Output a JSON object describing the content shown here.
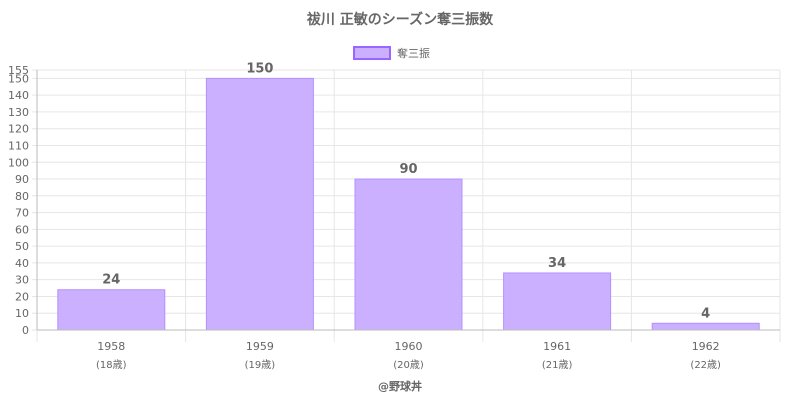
{
  "chart_data": {
    "type": "bar",
    "title": "祓川 正敏のシーズン奪三振数",
    "legend": {
      "position": "top",
      "entries": [
        "奪三振"
      ]
    },
    "categories": [
      "1958",
      "1959",
      "1960",
      "1961",
      "1962"
    ],
    "category_sublabels": [
      "(18歳)",
      "(19歳)",
      "(20歳)",
      "(21歳)",
      "(22歳)"
    ],
    "series": [
      {
        "name": "奪三振",
        "values": [
          24,
          150,
          90,
          34,
          4
        ]
      }
    ],
    "data_labels": [
      "24",
      "150",
      "90",
      "34",
      "4"
    ],
    "ylim": [
      0,
      155
    ],
    "yticks": [
      0,
      10,
      20,
      30,
      40,
      50,
      60,
      70,
      80,
      90,
      100,
      110,
      120,
      130,
      140,
      150,
      155
    ],
    "grid": true,
    "colors": {
      "bar_fill": "#cbb0ff",
      "bar_border": "#b490ff",
      "legend_border": "#9966ff",
      "grid": "#e6e6e6",
      "text": "#666666"
    }
  },
  "credit": "@野球丼"
}
